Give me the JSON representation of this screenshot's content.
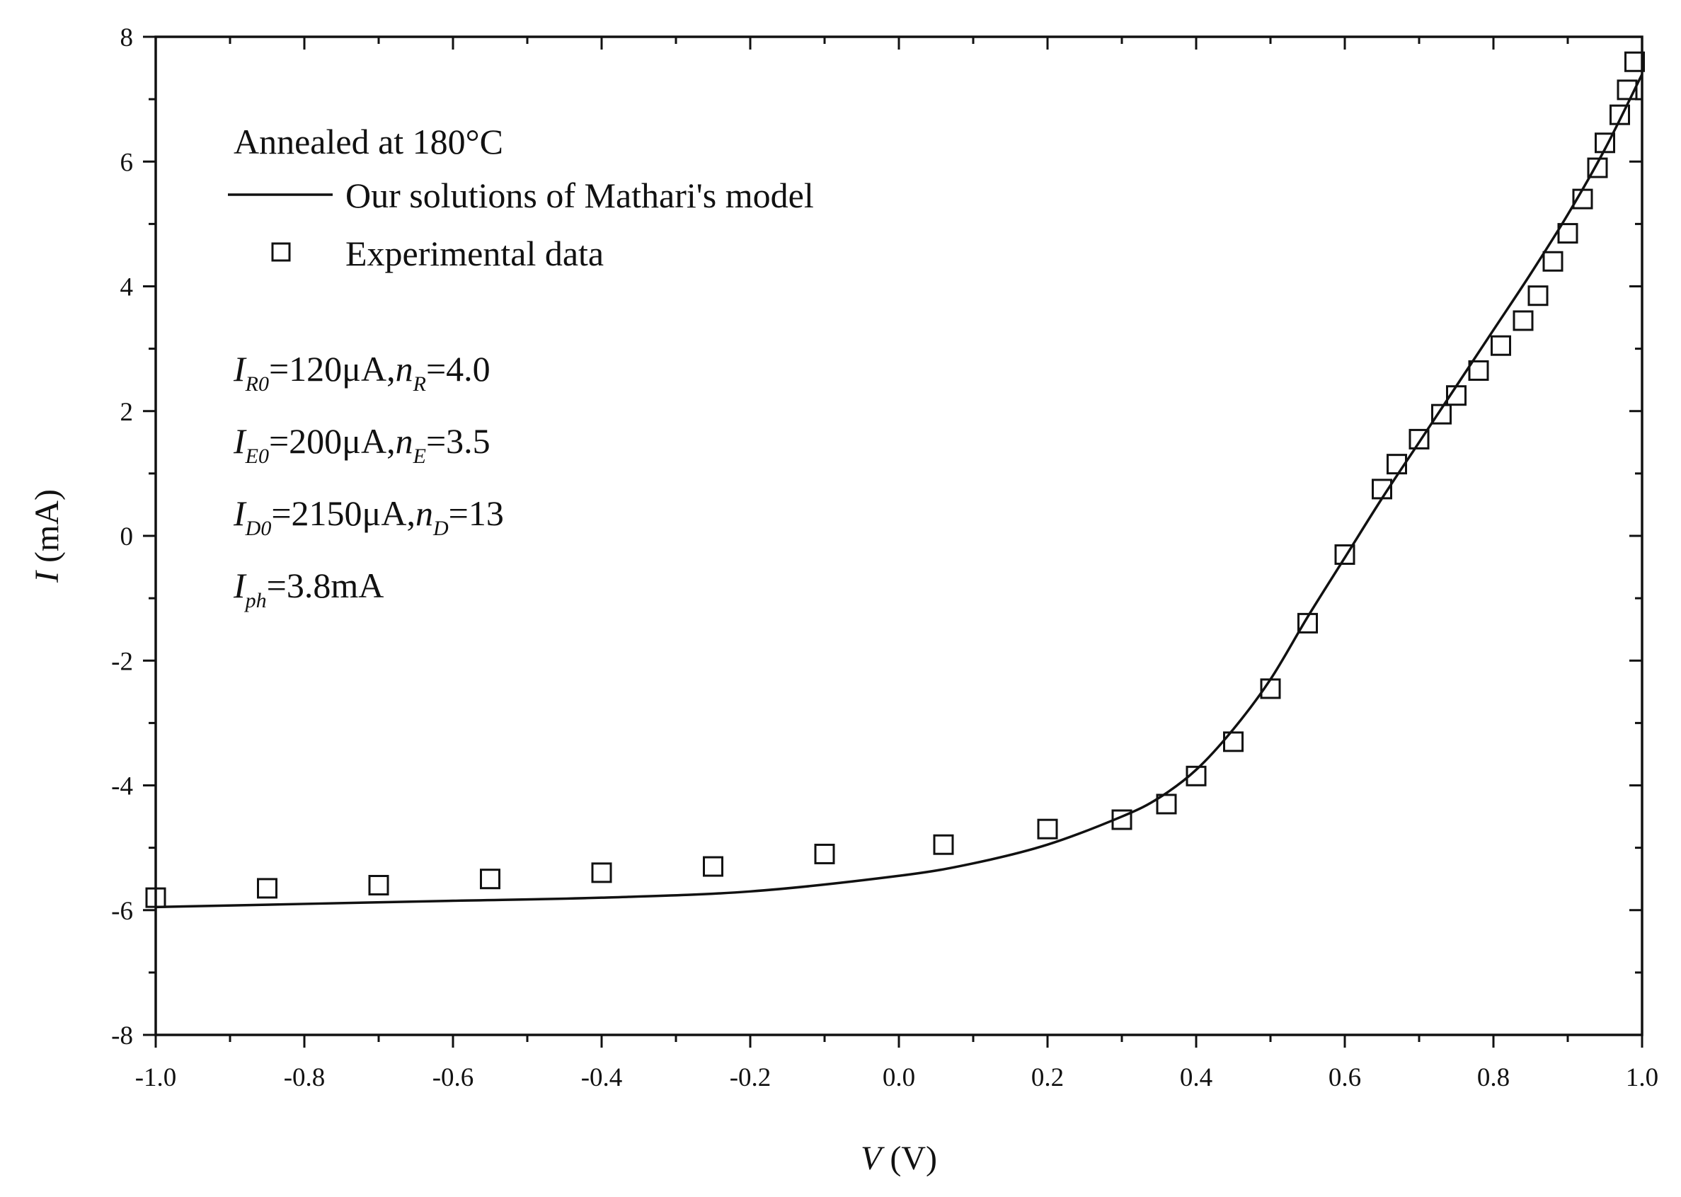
{
  "chart_data": {
    "type": "line",
    "xlabel_var": "V",
    "xlabel_unit": " (V)",
    "ylabel_var": "I",
    "ylabel_unit": " (mA)",
    "xlim": [
      -1.0,
      1.0
    ],
    "ylim": [
      -8,
      8
    ],
    "x_ticks": [
      -1.0,
      -0.8,
      -0.6,
      -0.4,
      -0.2,
      0.0,
      0.2,
      0.4,
      0.6,
      0.8,
      1.0
    ],
    "x_tick_labels": [
      "-1.0",
      "-0.8",
      "-0.6",
      "-0.4",
      "-0.2",
      "0.0",
      "0.2",
      "0.4",
      "0.6",
      "0.8",
      "1.0"
    ],
    "y_ticks": [
      -8,
      -6,
      -4,
      -2,
      0,
      2,
      4,
      6,
      8
    ],
    "y_tick_labels": [
      "-8",
      "-6",
      "-4",
      "-2",
      "0",
      "2",
      "4",
      "6",
      "8"
    ],
    "grid": false,
    "legend_placement": "top-left",
    "legend_title": "Annealed at 180°C",
    "series": [
      {
        "name": "Our solutions of Mathari's model",
        "type": "line",
        "x": [
          -1.0,
          -0.8,
          -0.6,
          -0.4,
          -0.2,
          0.0,
          0.1,
          0.2,
          0.3,
          0.35,
          0.4,
          0.45,
          0.5,
          0.55,
          0.6,
          0.65,
          0.7,
          0.75,
          0.8,
          0.85,
          0.9,
          0.95,
          1.0
        ],
        "y": [
          -5.95,
          -5.9,
          -5.85,
          -5.8,
          -5.7,
          -5.45,
          -5.25,
          -4.95,
          -4.5,
          -4.2,
          -3.75,
          -3.1,
          -2.3,
          -1.3,
          -0.35,
          0.6,
          1.5,
          2.4,
          3.3,
          4.2,
          5.15,
          6.2,
          7.4
        ]
      },
      {
        "name": "Experimental data",
        "type": "scatter",
        "marker": "open-square",
        "x": [
          -1.0,
          -0.85,
          -0.7,
          -0.55,
          -0.4,
          -0.25,
          -0.1,
          0.06,
          0.2,
          0.3,
          0.36,
          0.4,
          0.45,
          0.5,
          0.55,
          0.6,
          0.65,
          0.67,
          0.7,
          0.73,
          0.75,
          0.78,
          0.81,
          0.84,
          0.86,
          0.88,
          0.9,
          0.92,
          0.94,
          0.95,
          0.97,
          0.98,
          0.99
        ],
        "y": [
          -5.8,
          -5.65,
          -5.6,
          -5.5,
          -5.4,
          -5.3,
          -5.1,
          -4.95,
          -4.7,
          -4.55,
          -4.3,
          -3.85,
          -3.3,
          -2.45,
          -1.4,
          -0.3,
          0.75,
          1.15,
          1.55,
          1.95,
          2.25,
          2.65,
          3.05,
          3.45,
          3.85,
          4.4,
          4.85,
          5.4,
          5.9,
          6.3,
          6.75,
          7.15,
          7.6
        ]
      }
    ],
    "annotations": {
      "params": [
        {
          "left_var": "I",
          "left_sub": "R0",
          "left_val": "=120μA,",
          "right_var": "n",
          "right_sub": "R",
          "right_val": "=4.0"
        },
        {
          "left_var": "I",
          "left_sub": "E0",
          "left_val": "=200μA,",
          "right_var": "n",
          "right_sub": "E",
          "right_val": "=3.5"
        },
        {
          "left_var": "I",
          "left_sub": "D0",
          "left_val": "=2150μA,",
          "right_var": "n",
          "right_sub": "D",
          "right_val": "=13"
        },
        {
          "left_var": "I",
          "left_sub": "ph",
          "left_val": "=3.8mA",
          "right_var": "",
          "right_sub": "",
          "right_val": ""
        }
      ]
    }
  }
}
